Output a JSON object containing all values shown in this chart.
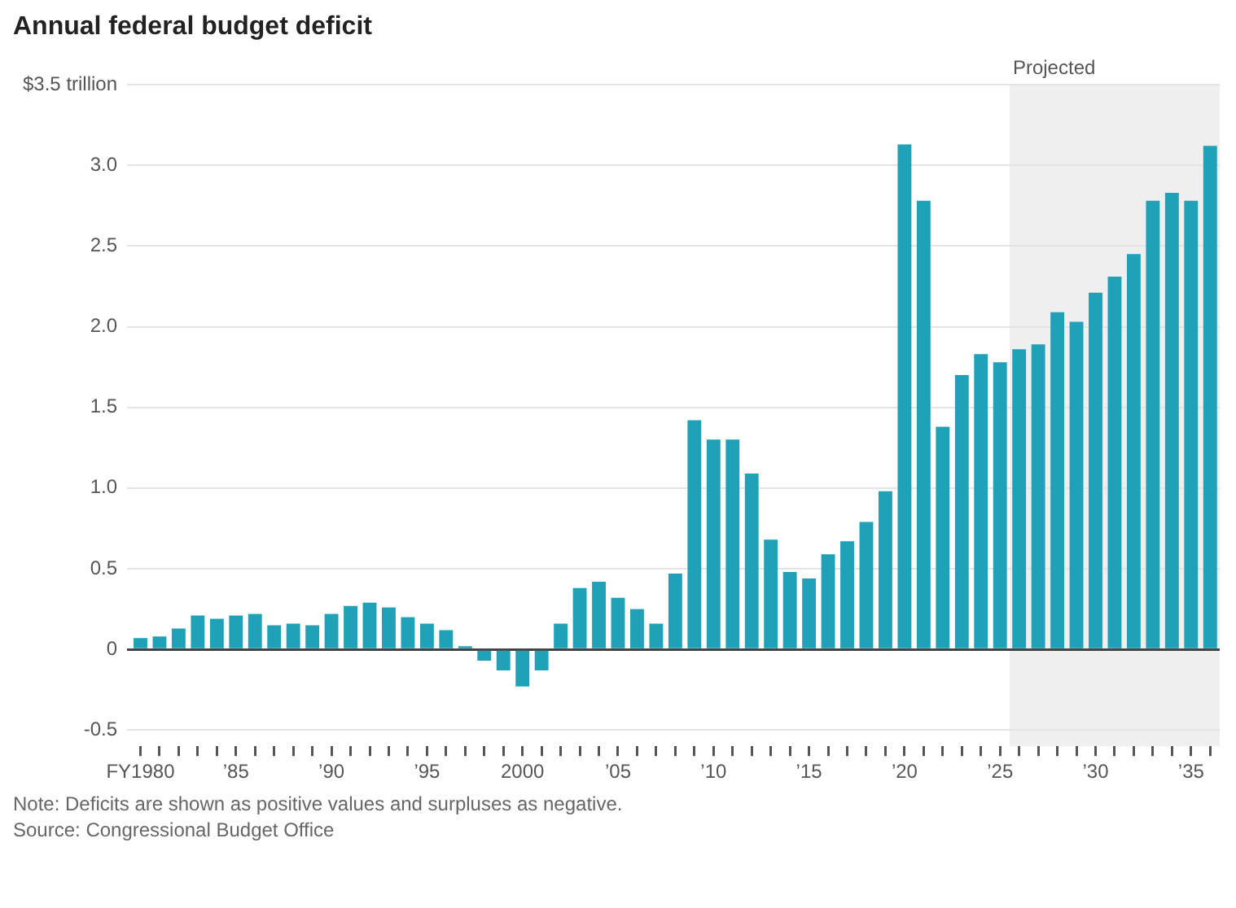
{
  "chart_data": {
    "type": "bar",
    "title": "Annual federal budget deficit",
    "annotations": [
      "Note: Deficits are shown as positive values and surpluses as negative.",
      "Source: Congressional Budget Office"
    ],
    "x": [
      1980,
      1981,
      1982,
      1983,
      1984,
      1985,
      1986,
      1987,
      1988,
      1989,
      1990,
      1991,
      1992,
      1993,
      1994,
      1995,
      1996,
      1997,
      1998,
      1999,
      2000,
      2001,
      2002,
      2003,
      2004,
      2005,
      2006,
      2007,
      2008,
      2009,
      2010,
      2011,
      2012,
      2013,
      2014,
      2015,
      2016,
      2017,
      2018,
      2019,
      2020,
      2021,
      2022,
      2023,
      2024,
      2025,
      2026,
      2027,
      2028,
      2029,
      2030,
      2031,
      2032,
      2033,
      2034,
      2035,
      2036
    ],
    "values": [
      0.07,
      0.08,
      0.13,
      0.21,
      0.19,
      0.21,
      0.22,
      0.15,
      0.16,
      0.15,
      0.22,
      0.27,
      0.29,
      0.26,
      0.2,
      0.16,
      0.12,
      0.02,
      -0.07,
      -0.13,
      -0.23,
      -0.13,
      0.16,
      0.38,
      0.42,
      0.32,
      0.25,
      0.16,
      0.47,
      1.42,
      1.3,
      1.3,
      1.09,
      0.68,
      0.48,
      0.44,
      0.59,
      0.67,
      0.79,
      0.98,
      3.13,
      2.78,
      1.38,
      1.7,
      1.83,
      1.78,
      1.86,
      1.89,
      2.09,
      2.03,
      2.21,
      2.31,
      2.45,
      2.78,
      2.83,
      2.78,
      3.12
    ],
    "color": "#1fa2b8",
    "xlim": [
      1979.3,
      2036.5
    ],
    "xticks": [
      {
        "value": 1980,
        "label": "FY1980"
      },
      {
        "value": 1981,
        "label": null
      },
      {
        "value": 1982,
        "label": null
      },
      {
        "value": 1983,
        "label": null
      },
      {
        "value": 1984,
        "label": null
      },
      {
        "value": 1985,
        "label": "’85"
      },
      {
        "value": 1986,
        "label": null
      },
      {
        "value": 1987,
        "label": null
      },
      {
        "value": 1988,
        "label": null
      },
      {
        "value": 1989,
        "label": null
      },
      {
        "value": 1990,
        "label": "’90"
      },
      {
        "value": 1991,
        "label": null
      },
      {
        "value": 1992,
        "label": null
      },
      {
        "value": 1993,
        "label": null
      },
      {
        "value": 1994,
        "label": null
      },
      {
        "value": 1995,
        "label": "’95"
      },
      {
        "value": 1996,
        "label": null
      },
      {
        "value": 1997,
        "label": null
      },
      {
        "value": 1998,
        "label": null
      },
      {
        "value": 1999,
        "label": null
      },
      {
        "value": 2000,
        "label": "2000"
      },
      {
        "value": 2001,
        "label": null
      },
      {
        "value": 2002,
        "label": null
      },
      {
        "value": 2003,
        "label": null
      },
      {
        "value": 2004,
        "label": null
      },
      {
        "value": 2005,
        "label": "’05"
      },
      {
        "value": 2006,
        "label": null
      },
      {
        "value": 2007,
        "label": null
      },
      {
        "value": 2008,
        "label": null
      },
      {
        "value": 2009,
        "label": null
      },
      {
        "value": 2010,
        "label": "’10"
      },
      {
        "value": 2011,
        "label": null
      },
      {
        "value": 2012,
        "label": null
      },
      {
        "value": 2013,
        "label": null
      },
      {
        "value": 2014,
        "label": null
      },
      {
        "value": 2015,
        "label": "’15"
      },
      {
        "value": 2016,
        "label": null
      },
      {
        "value": 2017,
        "label": null
      },
      {
        "value": 2018,
        "label": null
      },
      {
        "value": 2019,
        "label": null
      },
      {
        "value": 2020,
        "label": "’20"
      },
      {
        "value": 2021,
        "label": null
      },
      {
        "value": 2022,
        "label": null
      },
      {
        "value": 2023,
        "label": null
      },
      {
        "value": 2024,
        "label": null
      },
      {
        "value": 2025,
        "label": "’25"
      },
      {
        "value": 2026,
        "label": null
      },
      {
        "value": 2027,
        "label": null
      },
      {
        "value": 2028,
        "label": null
      },
      {
        "value": 2029,
        "label": null
      },
      {
        "value": 2030,
        "label": "’30"
      },
      {
        "value": 2031,
        "label": null
      },
      {
        "value": 2032,
        "label": null
      },
      {
        "value": 2033,
        "label": null
      },
      {
        "value": 2034,
        "label": null
      },
      {
        "value": 2035,
        "label": "’35"
      },
      {
        "value": 2036,
        "label": null
      }
    ],
    "ylim": [
      -0.6,
      3.5
    ],
    "yticks": [
      -0.5,
      0,
      0.5,
      {
        "value": 1,
        "label": "1.0"
      },
      1.5,
      {
        "value": 2,
        "label": "2.0"
      },
      2.5,
      {
        "value": 3,
        "label": "3.0"
      },
      {
        "value": 3.5,
        "label": "$3.5 trillion"
      }
    ],
    "bands": [
      {
        "axis": "x",
        "from": 2025.5,
        "to": 2036.5,
        "label": "Projected",
        "color": "#efefef"
      }
    ],
    "grid": "y",
    "legend": false
  }
}
